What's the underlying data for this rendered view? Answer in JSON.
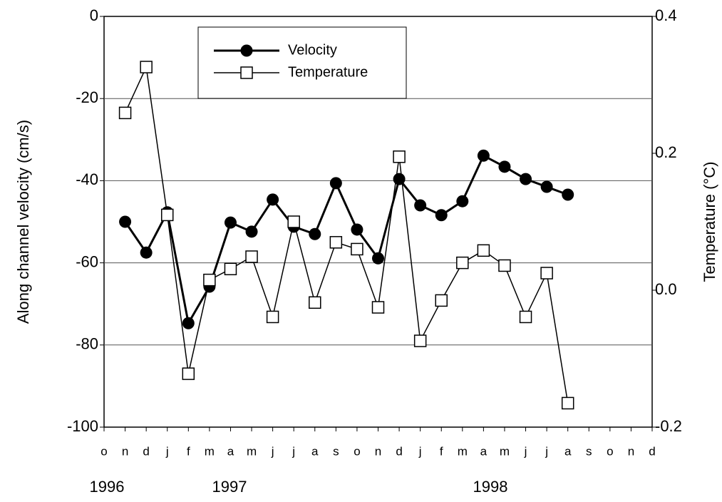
{
  "chart_data": {
    "type": "line",
    "y_label": "Along channel velocity (cm/s)",
    "y2_label": "Temperature (°C)",
    "categories": [
      "o",
      "n",
      "d",
      "j",
      "f",
      "m",
      "a",
      "m",
      "j",
      "j",
      "a",
      "s",
      "o",
      "n",
      "d",
      "j",
      "f",
      "m",
      "a",
      "m",
      "j",
      "j",
      "a",
      "s",
      "o",
      "n",
      "d"
    ],
    "year_labels": [
      "1996",
      "1997",
      "1998"
    ],
    "series": [
      {
        "name": "Velocity",
        "color": "#000000",
        "marker": "circle",
        "values": [
          null,
          -50,
          -57.5,
          -47.7,
          -74.7,
          -65.8,
          -50.2,
          -52.4,
          -44.6,
          -51.2,
          -53,
          -40.6,
          -51.9,
          -58.9,
          -39.6,
          -46,
          -48.4,
          -45,
          -33.9,
          -36.6,
          -39.6,
          -41.5,
          -43.4,
          null,
          null,
          null,
          null
        ]
      },
      {
        "name": "Temperature",
        "color": "#000000",
        "marker": "square",
        "axis": "y2",
        "values": [
          null,
          0.259,
          0.326,
          0.11,
          -0.122,
          0.015,
          0.031,
          0.049,
          -0.039,
          0.1,
          -0.018,
          0.07,
          0.06,
          -0.025,
          0.195,
          -0.074,
          -0.015,
          0.04,
          0.058,
          0.036,
          -0.039,
          0.025,
          -0.165,
          null,
          null,
          null,
          null
        ]
      }
    ],
    "ylim": [
      -100,
      0
    ],
    "yticks": [
      -100,
      -80,
      -60,
      -40,
      -20,
      0
    ],
    "y2lim": [
      -0.2,
      0.4
    ],
    "y2ticks": [
      -0.2,
      {
        "value": 0,
        "label": "0.0"
      },
      0.2,
      0.4
    ],
    "grid": true
  }
}
